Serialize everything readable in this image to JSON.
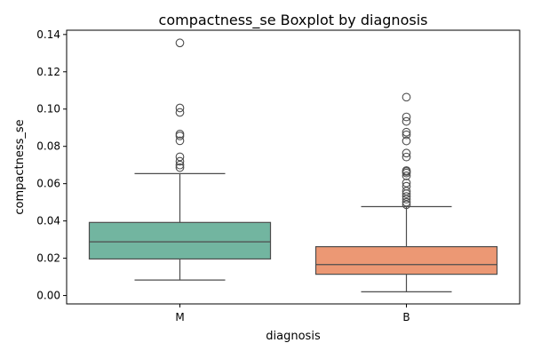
{
  "chart_data": {
    "type": "boxplot",
    "title": "compactness_se Boxplot by diagnosis",
    "xlabel": "diagnosis",
    "ylabel": "compactness_se",
    "ylim": [
      -0.0045,
      0.1423
    ],
    "yticks": [
      0.0,
      0.02,
      0.04,
      0.06,
      0.08,
      0.1,
      0.12,
      0.14
    ],
    "ytick_labels": [
      "0.00",
      "0.02",
      "0.04",
      "0.06",
      "0.08",
      "0.10",
      "0.12",
      "0.14"
    ],
    "grid": false,
    "categories": [
      "M",
      "B"
    ],
    "boxes": [
      {
        "category": "M",
        "color": "#72b5a0",
        "whisker_low": 0.0083,
        "q1": 0.0196,
        "median": 0.0288,
        "q3": 0.0392,
        "whisker_high": 0.0654,
        "outliers": [
          0.1355,
          0.1006,
          0.0982,
          0.0866,
          0.0856,
          0.083,
          0.0744,
          0.072,
          0.07,
          0.0686
        ]
      },
      {
        "category": "B",
        "color": "#ec9874",
        "whisker_low": 0.002,
        "q1": 0.0114,
        "median": 0.0166,
        "q3": 0.0262,
        "whisker_high": 0.0477,
        "outliers": [
          0.1064,
          0.0958,
          0.0934,
          0.0876,
          0.0862,
          0.0829,
          0.0764,
          0.0743,
          0.067,
          0.0665,
          0.0657,
          0.0642,
          0.0604,
          0.0586,
          0.056,
          0.0546,
          0.0531,
          0.0517,
          0.05,
          0.0487
        ]
      }
    ]
  }
}
